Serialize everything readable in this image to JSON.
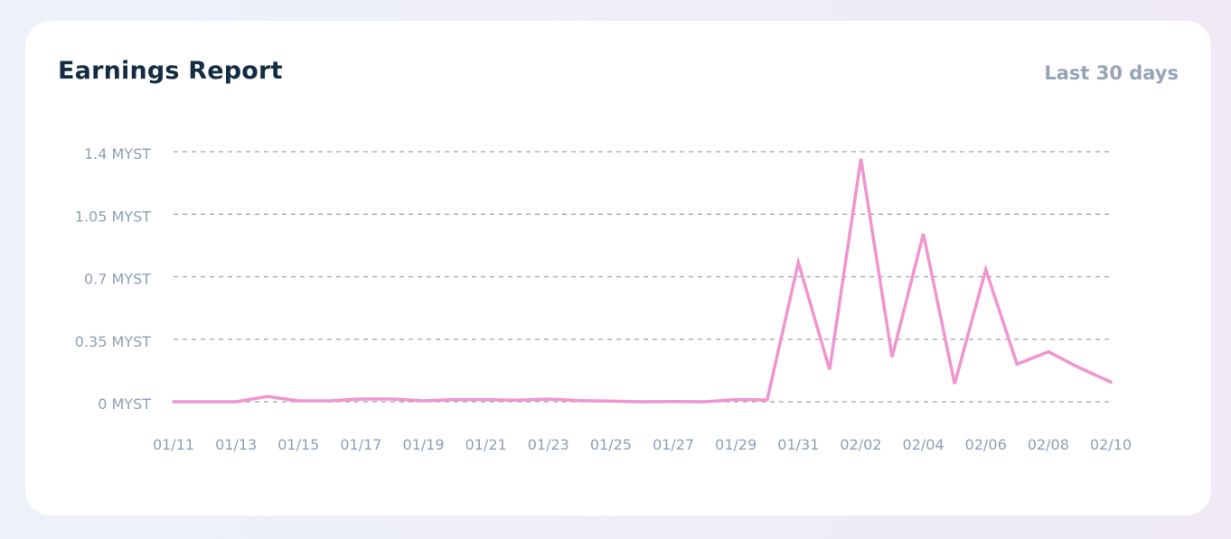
{
  "card": {
    "title": "Earnings Report",
    "range_label": "Last 30 days"
  },
  "colors": {
    "line": "#f095cf",
    "grid": "#9aa2b2",
    "tick_text": "#8f9fb5",
    "title": "#142d45"
  },
  "chart_data": {
    "type": "line",
    "title": "Earnings Report",
    "xlabel": "",
    "ylabel": "",
    "y_unit": "MYST",
    "ylim": [
      0,
      1.4
    ],
    "y_ticks": [
      0,
      0.35,
      0.7,
      1.05,
      1.4
    ],
    "y_tick_labels": [
      "0 MYST",
      "0.35 MYST",
      "0.7 MYST",
      "1.05 MYST",
      "1.4 MYST"
    ],
    "x_tick_labels": [
      "01/11",
      "01/13",
      "01/15",
      "01/17",
      "01/19",
      "01/21",
      "01/23",
      "01/25",
      "01/27",
      "01/29",
      "01/31",
      "02/02",
      "02/04",
      "02/06",
      "02/08",
      "02/10"
    ],
    "grid": "horizontal dashed",
    "legend": "none",
    "series": [
      {
        "x": [
          "01/11",
          "01/12",
          "01/13",
          "01/14",
          "01/15",
          "01/16",
          "01/17",
          "01/18",
          "01/19",
          "01/20",
          "01/21",
          "01/22",
          "01/23",
          "01/24",
          "01/25",
          "01/26",
          "01/27",
          "01/28",
          "01/29",
          "01/30",
          "01/31",
          "02/01",
          "02/02",
          "02/03",
          "02/04",
          "02/05",
          "02/06",
          "02/07",
          "02/08",
          "02/09",
          "02/10"
        ],
        "values": [
          0,
          0,
          0,
          0.03,
          0.005,
          0.005,
          0.015,
          0.015,
          0.005,
          0.012,
          0.012,
          0.008,
          0.015,
          0.006,
          0.004,
          0,
          0.001,
          0,
          0.012,
          0.01,
          0.78,
          0.18,
          1.36,
          0.25,
          0.94,
          0.1,
          0.74,
          0.21,
          0.28,
          0.19,
          0.11
        ]
      }
    ]
  }
}
